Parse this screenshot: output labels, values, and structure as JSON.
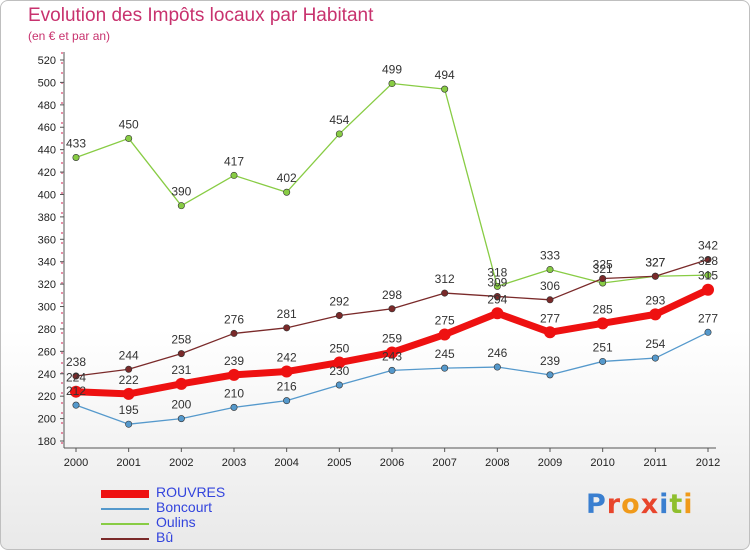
{
  "title": "Evolution des Impôts locaux par Habitant",
  "subtitle": "(en € et par an)",
  "logo": "Proxiti",
  "chart_data": {
    "type": "line",
    "x": [
      "2000",
      "2001",
      "2002",
      "2003",
      "2004",
      "2005",
      "2006",
      "2007",
      "2008",
      "2009",
      "2010",
      "2011",
      "2012"
    ],
    "ylim": [
      180,
      520
    ],
    "yticks": [
      180,
      200,
      220,
      240,
      260,
      280,
      300,
      320,
      340,
      360,
      380,
      400,
      420,
      440,
      460,
      480,
      500,
      520
    ],
    "grid": false,
    "legend_position": "bottom-left",
    "series": [
      {
        "name": "ROUVRES",
        "color": "#ee1111",
        "values": [
          224,
          222,
          231,
          239,
          242,
          250,
          259,
          275,
          294,
          277,
          285,
          293,
          315
        ]
      },
      {
        "name": "Boncourt",
        "color": "#5599cc",
        "values": [
          212,
          195,
          200,
          210,
          216,
          230,
          243,
          245,
          246,
          239,
          251,
          254,
          277
        ]
      },
      {
        "name": "Oulins",
        "color": "#88cc44",
        "values": [
          433,
          450,
          390,
          417,
          402,
          454,
          499,
          494,
          318,
          333,
          321,
          327,
          328
        ]
      },
      {
        "name": "Bû",
        "color": "#7a2a2a",
        "values": [
          238,
          244,
          258,
          276,
          281,
          292,
          298,
          312,
          309,
          306,
          325,
          327,
          342
        ]
      }
    ]
  }
}
